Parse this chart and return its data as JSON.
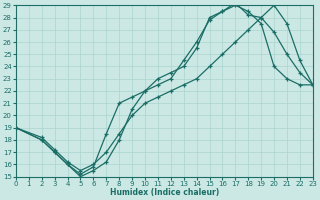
{
  "xlabel": "Humidex (Indice chaleur)",
  "bg_color": "#cce8e5",
  "line_color": "#1a6e66",
  "grid_color": "#aad4d0",
  "xlim": [
    0,
    23
  ],
  "ylim": [
    15,
    29
  ],
  "xticks": [
    0,
    1,
    2,
    3,
    4,
    5,
    6,
    7,
    8,
    9,
    10,
    11,
    12,
    13,
    14,
    15,
    16,
    17,
    18,
    19,
    20,
    21,
    22,
    23
  ],
  "yticks": [
    15,
    16,
    17,
    18,
    19,
    20,
    21,
    22,
    23,
    24,
    25,
    26,
    27,
    28,
    29
  ],
  "line1_x": [
    0,
    2,
    3,
    4,
    5,
    6,
    7,
    8,
    9,
    10,
    11,
    12,
    13,
    14,
    15,
    16,
    17,
    18,
    19,
    20,
    21,
    22,
    23
  ],
  "line1_y": [
    19.0,
    18.0,
    17.0,
    16.0,
    15.0,
    15.5,
    16.2,
    18.0,
    20.5,
    22.0,
    23.0,
    23.5,
    24.0,
    25.5,
    28.0,
    28.5,
    29.0,
    28.5,
    27.5,
    24.0,
    23.0,
    22.5,
    22.5
  ],
  "line2_x": [
    0,
    2,
    3,
    4,
    5,
    6,
    7,
    8,
    9,
    10,
    11,
    12,
    13,
    14,
    15,
    16,
    17,
    18,
    19,
    20,
    21,
    22,
    23
  ],
  "line2_y": [
    19.0,
    18.0,
    17.0,
    16.0,
    15.2,
    15.8,
    18.5,
    21.0,
    21.5,
    22.0,
    22.5,
    23.0,
    24.5,
    26.0,
    27.8,
    28.5,
    29.2,
    28.2,
    28.0,
    26.8,
    25.0,
    23.5,
    22.5
  ],
  "line3_x": [
    0,
    2,
    3,
    4,
    5,
    6,
    7,
    8,
    9,
    10,
    11,
    12,
    13,
    14,
    15,
    16,
    17,
    18,
    19,
    20,
    21,
    22,
    23
  ],
  "line3_y": [
    19.0,
    18.2,
    17.2,
    16.2,
    15.5,
    16.0,
    17.0,
    18.5,
    20.0,
    21.0,
    21.5,
    22.0,
    22.5,
    23.0,
    24.0,
    25.0,
    26.0,
    27.0,
    28.0,
    29.0,
    27.5,
    24.5,
    22.5
  ]
}
